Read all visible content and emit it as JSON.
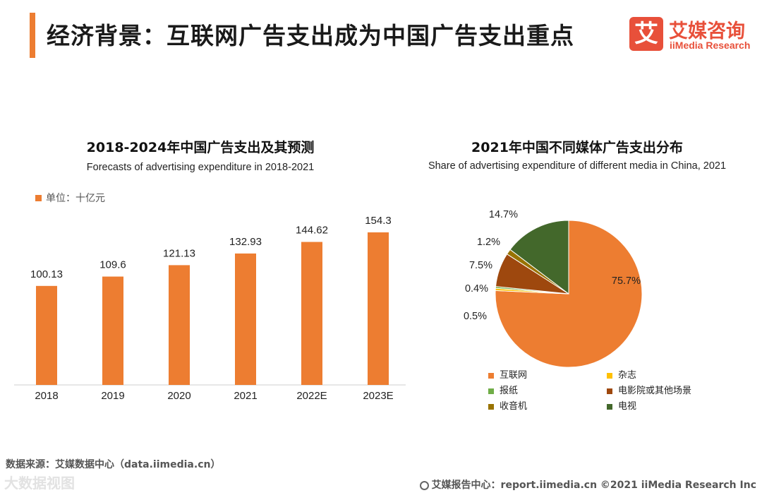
{
  "header": {
    "title": "经济背景：互联网广告支出成为中国广告支出重点",
    "logo_mark": "艾",
    "logo_cn": "艾媒咨询",
    "logo_en": "iiMedia Research"
  },
  "left_chart": {
    "title": "2018-2024年中国广告支出及其预测",
    "subtitle": "Forecasts of advertising expenditure in 2018-2021",
    "unit_label": "单位：十亿元"
  },
  "right_chart": {
    "title": "2021年中国不同媒体广告支出分布",
    "subtitle": "Share of advertising expenditure of different media in China, 2021"
  },
  "chart_data": [
    {
      "type": "bar",
      "title": "2018-2024年中国广告支出及其预测",
      "subtitle": "Forecasts of advertising expenditure in 2018-2021",
      "categories": [
        "2018",
        "2019",
        "2020",
        "2021",
        "2022E",
        "2023E"
      ],
      "values": [
        100.13,
        109.6,
        121.13,
        132.93,
        144.62,
        154.3
      ],
      "value_labels": [
        "100.13",
        "109.6",
        "121.13",
        "132.93",
        "144.62",
        "154.3"
      ],
      "unit": "十亿元",
      "color": "#ed7d31",
      "grid": false
    },
    {
      "type": "pie",
      "title": "2021年中国不同媒体广告支出分布",
      "subtitle": "Share of advertising expenditure of different media in China, 2021",
      "slices": [
        {
          "name": "互联网",
          "value": 75.7,
          "label": "75.7%",
          "color": "#ed7d31"
        },
        {
          "name": "杂志",
          "value": 0.5,
          "label": "0.5%",
          "color": "#ffc000"
        },
        {
          "name": "报纸",
          "value": 0.4,
          "label": "0.4%",
          "color": "#70ad47"
        },
        {
          "name": "电影院或其他场景",
          "value": 7.5,
          "label": "7.5%",
          "color": "#9e480e"
        },
        {
          "name": "收音机",
          "value": 1.2,
          "label": "1.2%",
          "color": "#997300"
        },
        {
          "name": "电视",
          "value": 14.7,
          "label": "14.7%",
          "color": "#43682b"
        }
      ],
      "legend_position": "bottom"
    }
  ],
  "footer": {
    "source": "数据来源：艾媒数据中心（data.iimedia.cn）",
    "watermark": "大数据视图",
    "report": "艾媒报告中心：report.iimedia.cn  ©2021  iiMedia Research  Inc"
  }
}
